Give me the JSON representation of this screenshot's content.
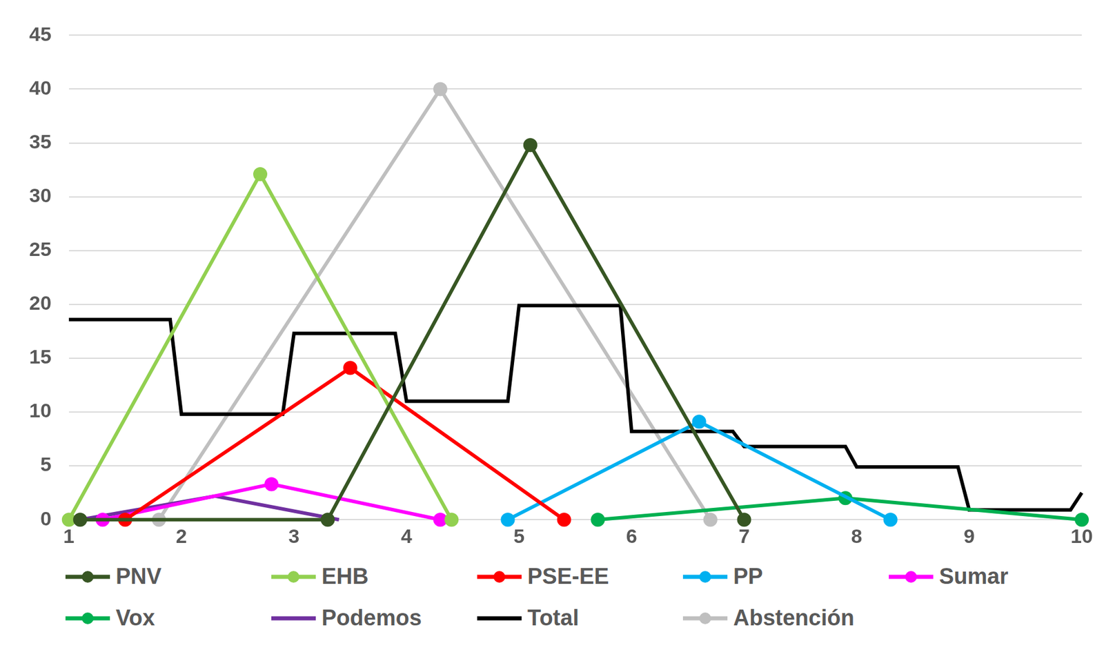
{
  "chart_data": {
    "type": "line",
    "xlim": [
      1,
      10
    ],
    "xticks": [
      1,
      2,
      3,
      4,
      5,
      6,
      7,
      8,
      9,
      10
    ],
    "ylim": [
      0,
      45
    ],
    "yticks": [
      0,
      5,
      10,
      15,
      20,
      25,
      30,
      35,
      40,
      45
    ],
    "grid": true,
    "legend": "bottom",
    "series": [
      {
        "name": "PNV",
        "color": "#375623",
        "marker": "circle",
        "x": [
          1.1,
          3.3,
          5.1,
          7.0
        ],
        "values": [
          0,
          0,
          34.8,
          0
        ]
      },
      {
        "name": "EHB",
        "color": "#92d050",
        "marker": "circle",
        "x": [
          1.0,
          2.7,
          4.4
        ],
        "values": [
          0,
          32.1,
          0
        ]
      },
      {
        "name": "PSE-EE",
        "color": "#ff0000",
        "marker": "circle",
        "x": [
          1.5,
          3.5,
          5.4
        ],
        "values": [
          0,
          14.1,
          0
        ]
      },
      {
        "name": "PP",
        "color": "#00b0f0",
        "marker": "circle",
        "x": [
          4.9,
          6.6,
          8.3
        ],
        "values": [
          0,
          9.1,
          0
        ]
      },
      {
        "name": "Sumar",
        "color": "#ff00ff",
        "marker": "circle",
        "x": [
          1.3,
          2.8,
          4.3
        ],
        "values": [
          0,
          3.3,
          0
        ]
      },
      {
        "name": "Vox",
        "color": "#00b050",
        "marker": "circle",
        "x": [
          5.7,
          7.9,
          10.0
        ],
        "values": [
          0,
          2.0,
          0
        ]
      },
      {
        "name": "Podemos",
        "color": "#7030a0",
        "marker": "none",
        "x": [
          1.1,
          2.3,
          3.4
        ],
        "values": [
          0,
          2.2,
          0
        ]
      },
      {
        "name": "Total",
        "color": "#000000",
        "marker": "none",
        "x": [
          1.0,
          1.9,
          2.0,
          2.9,
          3.0,
          3.9,
          4.0,
          4.9,
          5.0,
          5.9,
          6.0,
          6.9,
          7.0,
          7.9,
          8.0,
          8.9,
          9.0,
          9.9,
          10.0
        ],
        "values": [
          18.6,
          18.6,
          9.8,
          9.8,
          17.3,
          17.3,
          11.0,
          11.0,
          19.9,
          19.9,
          8.2,
          8.2,
          6.8,
          6.8,
          4.9,
          4.9,
          0.9,
          0.9,
          2.5
        ]
      },
      {
        "name": "Abstención",
        "color": "#bfbfbf",
        "marker": "circle",
        "x": [
          1.8,
          4.3,
          6.7
        ],
        "values": [
          0,
          40,
          0
        ]
      }
    ]
  }
}
